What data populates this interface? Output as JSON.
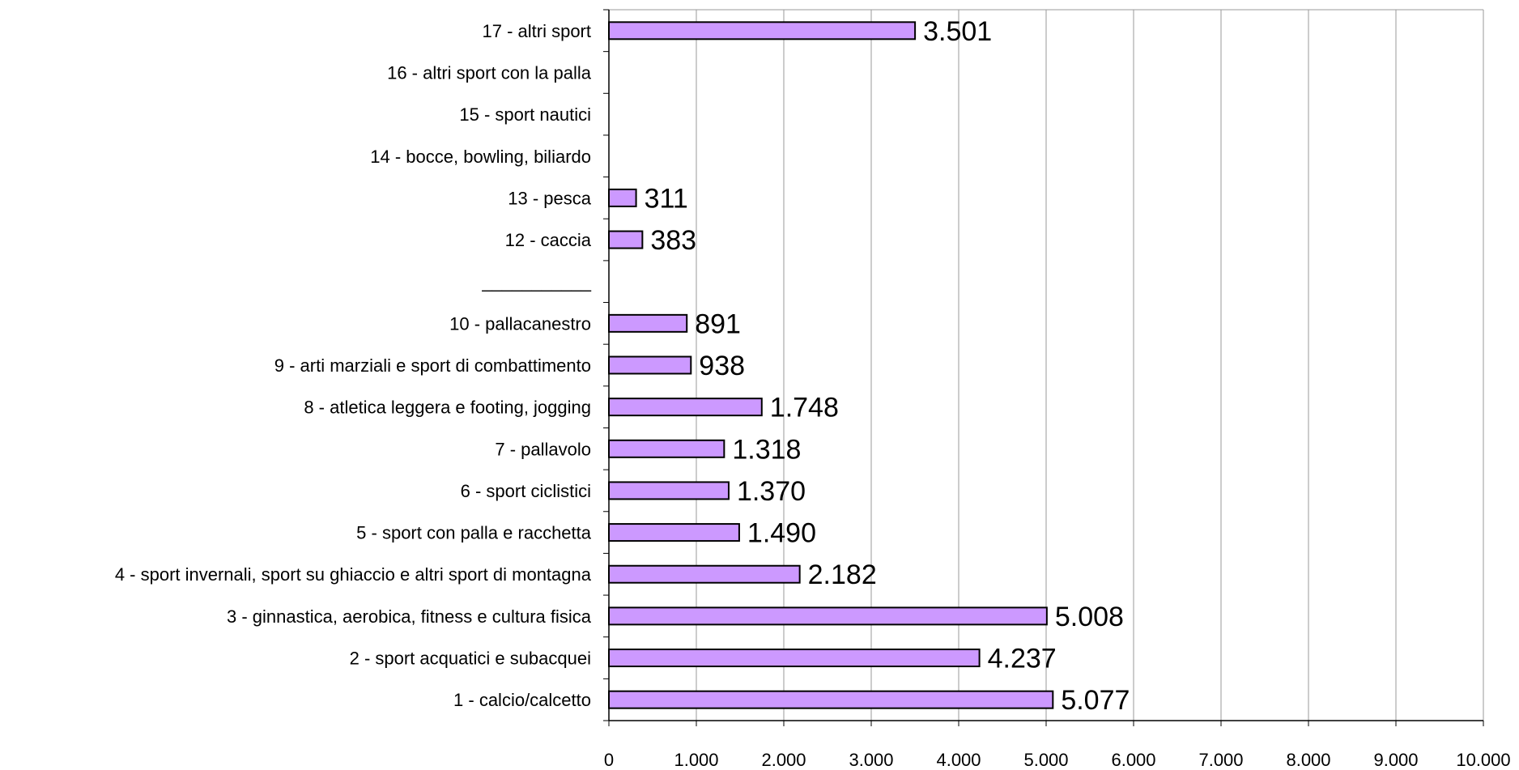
{
  "chart_data": {
    "type": "bar",
    "orientation": "horizontal",
    "title": "",
    "xlabel": "",
    "ylabel": "",
    "xlim": [
      0,
      10000
    ],
    "xticks": [
      "0",
      "1.000",
      "2.000",
      "3.000",
      "4.000",
      "5.000",
      "6.000",
      "7.000",
      "8.000",
      "9.000",
      "10.000"
    ],
    "grid": true,
    "bar_color": "#cc99ff",
    "categories": [
      "17 - altri sport",
      "16 - altri sport con la palla",
      "15 - sport nautici",
      "14 - bocce, bowling, biliardo",
      "13 - pesca",
      "12 - caccia",
      "___________",
      "10 - pallacanestro",
      "9 - arti marziali e sport di combattimento",
      "8 - atletica leggera e footing, jogging",
      "7 - pallavolo",
      "6 - sport ciclistici",
      "5 - sport con palla e racchetta",
      "4 - sport invernali, sport su ghiaccio e altri sport di montagna",
      "3 - ginnastica, aerobica, fitness e cultura fisica",
      "2 - sport acquatici e subacquei",
      "1 - calcio/calcetto"
    ],
    "values": [
      3501,
      null,
      null,
      null,
      311,
      383,
      null,
      891,
      938,
      1748,
      1318,
      1370,
      1490,
      2182,
      5008,
      4237,
      5077
    ],
    "data_labels": [
      "3.501",
      "",
      "",
      "",
      "311",
      "383",
      "",
      "891",
      "938",
      "1.748",
      "1.318",
      "1.370",
      "1.490",
      "2.182",
      "5.008",
      "4.237",
      "5.077"
    ]
  }
}
